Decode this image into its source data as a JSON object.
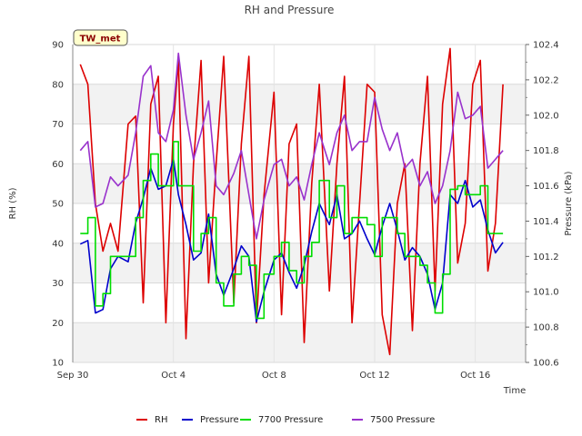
{
  "chart_data": {
    "type": "line",
    "title": "RH and Pressure",
    "station_label": "TW_met",
    "xlabel": "Time",
    "ylabel_left": "RH (%)",
    "ylabel_right": "Pressure (kPa)",
    "x_ticks": [
      "Sep 30",
      "Oct 4",
      "Oct 8",
      "Oct 12",
      "Oct 16"
    ],
    "x_tick_days": [
      0,
      4,
      8,
      12,
      16
    ],
    "xlim_days": [
      0,
      18
    ],
    "ylim_left": [
      10,
      90
    ],
    "left_ticks": [
      10,
      20,
      30,
      40,
      50,
      60,
      70,
      80,
      90
    ],
    "ylim_right": [
      100.6,
      102.4
    ],
    "right_ticks": [
      "100.6",
      "100.8",
      "101.0",
      "101.2",
      "101.4",
      "101.6",
      "101.8",
      "102.0",
      "102.2",
      "102.4"
    ],
    "right_tick_values": [
      100.6,
      100.8,
      101.0,
      101.2,
      101.4,
      101.6,
      101.8,
      102.0,
      102.2,
      102.4
    ],
    "grid": true,
    "legend_position": "bottom",
    "series": [
      {
        "name": "RH",
        "axis": "left",
        "color": "#dd0000",
        "x_days": [
          0.3,
          0.6,
          0.9,
          1.2,
          1.5,
          1.8,
          2.2,
          2.5,
          2.8,
          3.1,
          3.4,
          3.7,
          4.0,
          4.2,
          4.5,
          4.8,
          5.1,
          5.4,
          5.7,
          6.0,
          6.4,
          6.7,
          7.0,
          7.3,
          7.6,
          8.0,
          8.3,
          8.6,
          8.9,
          9.2,
          9.5,
          9.8,
          10.2,
          10.5,
          10.8,
          11.1,
          11.4,
          11.7,
          12.0,
          12.3,
          12.6,
          12.9,
          13.2,
          13.5,
          13.8,
          14.1,
          14.4,
          14.7,
          15.0,
          15.3,
          15.6,
          15.9,
          16.2,
          16.5,
          16.8,
          17.1
        ],
        "values": [
          85,
          80,
          50,
          38,
          45,
          38,
          70,
          72,
          25,
          75,
          82,
          20,
          70,
          86,
          16,
          60,
          86,
          30,
          60,
          87,
          25,
          65,
          87,
          20,
          52,
          78,
          22,
          65,
          70,
          15,
          55,
          80,
          28,
          60,
          82,
          20,
          50,
          80,
          78,
          22,
          12,
          50,
          60,
          18,
          60,
          82,
          28,
          75,
          89,
          35,
          45,
          80,
          86,
          33,
          45,
          80
        ]
      },
      {
        "name": "Pressure",
        "axis": "right",
        "color": "#0000cc",
        "x_days": [
          0.3,
          0.6,
          0.9,
          1.2,
          1.5,
          1.8,
          2.2,
          2.5,
          2.8,
          3.1,
          3.4,
          3.7,
          4.0,
          4.2,
          4.5,
          4.8,
          5.1,
          5.4,
          5.7,
          6.0,
          6.4,
          6.7,
          7.0,
          7.3,
          7.6,
          8.0,
          8.3,
          8.6,
          8.9,
          9.2,
          9.5,
          9.8,
          10.2,
          10.5,
          10.8,
          11.1,
          11.4,
          11.7,
          12.0,
          12.3,
          12.6,
          12.9,
          13.2,
          13.5,
          13.8,
          14.1,
          14.4,
          14.7,
          15.0,
          15.3,
          15.6,
          15.9,
          16.2,
          16.5,
          16.8,
          17.1
        ],
        "values": [
          101.27,
          101.29,
          100.88,
          100.9,
          101.13,
          101.2,
          101.17,
          101.39,
          101.53,
          101.7,
          101.58,
          101.6,
          101.75,
          101.55,
          101.38,
          101.18,
          101.22,
          101.44,
          101.1,
          100.98,
          101.13,
          101.26,
          101.2,
          100.83,
          101.0,
          101.18,
          101.22,
          101.11,
          101.02,
          101.15,
          101.34,
          101.5,
          101.38,
          101.55,
          101.3,
          101.33,
          101.4,
          101.3,
          101.21,
          101.37,
          101.5,
          101.35,
          101.18,
          101.25,
          101.2,
          101.1,
          100.9,
          101.05,
          101.55,
          101.5,
          101.63,
          101.48,
          101.52,
          101.35,
          101.22,
          101.28
        ]
      },
      {
        "name": "7700 Pressure",
        "axis": "right",
        "color": "#00dd00",
        "x_days": [
          0.3,
          0.6,
          0.9,
          1.2,
          1.5,
          1.8,
          2.2,
          2.5,
          2.8,
          3.1,
          3.4,
          3.7,
          4.0,
          4.2,
          4.5,
          4.8,
          5.1,
          5.4,
          5.7,
          6.0,
          6.4,
          6.7,
          7.0,
          7.3,
          7.6,
          8.0,
          8.3,
          8.6,
          8.9,
          9.2,
          9.5,
          9.8,
          10.2,
          10.5,
          10.8,
          11.1,
          11.4,
          11.7,
          12.0,
          12.3,
          12.6,
          12.9,
          13.2,
          13.5,
          13.8,
          14.1,
          14.4,
          14.7,
          15.0,
          15.3,
          15.6,
          15.9,
          16.2,
          16.5,
          16.8,
          17.1
        ],
        "values": [
          101.33,
          101.42,
          100.92,
          100.99,
          101.2,
          101.2,
          101.2,
          101.42,
          101.63,
          101.78,
          101.6,
          101.6,
          101.85,
          101.6,
          101.6,
          101.23,
          101.33,
          101.42,
          101.05,
          100.92,
          101.1,
          101.2,
          101.15,
          100.85,
          101.1,
          101.2,
          101.28,
          101.12,
          101.05,
          101.2,
          101.28,
          101.63,
          101.42,
          101.6,
          101.33,
          101.42,
          101.42,
          101.38,
          101.2,
          101.42,
          101.42,
          101.33,
          101.2,
          101.2,
          101.15,
          101.05,
          100.88,
          101.1,
          101.58,
          101.6,
          101.55,
          101.55,
          101.6,
          101.33,
          101.33,
          101.33
        ]
      },
      {
        "name": "7500 Pressure",
        "axis": "right",
        "color": "#9932cc",
        "x_days": [
          0.3,
          0.6,
          0.9,
          1.2,
          1.5,
          1.8,
          2.2,
          2.5,
          2.8,
          3.1,
          3.4,
          3.7,
          4.0,
          4.2,
          4.5,
          4.8,
          5.1,
          5.4,
          5.7,
          6.0,
          6.4,
          6.7,
          7.0,
          7.3,
          7.6,
          8.0,
          8.3,
          8.6,
          8.9,
          9.2,
          9.5,
          9.8,
          10.2,
          10.5,
          10.8,
          11.1,
          11.4,
          11.7,
          12.0,
          12.3,
          12.6,
          12.9,
          13.2,
          13.5,
          13.8,
          14.1,
          14.4,
          14.7,
          15.0,
          15.3,
          15.6,
          15.9,
          16.2,
          16.5,
          16.8,
          17.1
        ],
        "values": [
          101.8,
          101.85,
          101.48,
          101.5,
          101.65,
          101.6,
          101.66,
          101.9,
          102.22,
          102.28,
          101.9,
          101.85,
          102.03,
          102.35,
          102.0,
          101.75,
          101.9,
          102.08,
          101.6,
          101.55,
          101.67,
          101.8,
          101.55,
          101.3,
          101.52,
          101.72,
          101.75,
          101.6,
          101.65,
          101.52,
          101.72,
          101.9,
          101.72,
          101.9,
          102.0,
          101.8,
          101.85,
          101.85,
          102.1,
          101.92,
          101.8,
          101.9,
          101.7,
          101.75,
          101.6,
          101.68,
          101.5,
          101.6,
          101.8,
          102.13,
          101.98,
          102.0,
          102.05,
          101.7,
          101.75,
          101.8
        ]
      }
    ]
  }
}
